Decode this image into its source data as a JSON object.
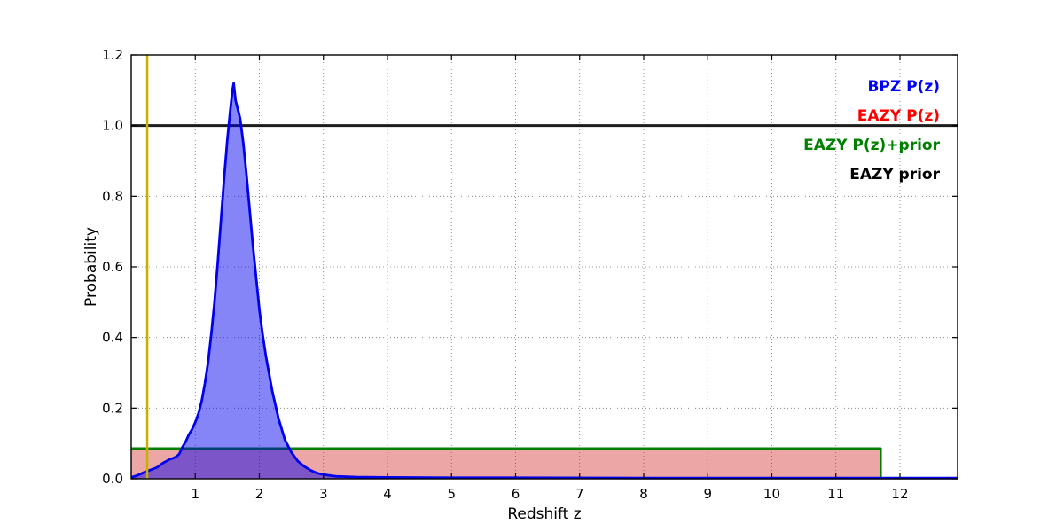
{
  "figure": {
    "background": "#ffffff"
  },
  "chart_data": {
    "type": "line",
    "title": "",
    "xlabel": "Redshift z",
    "ylabel": "Probability",
    "xlim": [
      0,
      12.9
    ],
    "ylim": [
      0,
      1.2
    ],
    "xticks": [
      1,
      2,
      3,
      4,
      5,
      6,
      7,
      8,
      9,
      10,
      11,
      12
    ],
    "xtick_labels": [
      "1",
      "2",
      "3",
      "4",
      "5",
      "6",
      "7",
      "8",
      "9",
      "10",
      "11",
      "12"
    ],
    "yticks": [
      0.0,
      0.2,
      0.4,
      0.6,
      0.8,
      1.0,
      1.2
    ],
    "ytick_labels": [
      "0.0",
      "0.2",
      "0.4",
      "0.6",
      "0.8",
      "1.0",
      "1.2"
    ],
    "grid": true,
    "grid_color": "#777777",
    "frame_color": "#000000",
    "legend_position": "upper right",
    "legend": [
      {
        "name": "legend-bpz-pz",
        "label": "BPZ P(z)",
        "color": "#0000ff"
      },
      {
        "name": "legend-eazy-pz",
        "label": "EAZY P(z)",
        "color": "#ff0000"
      },
      {
        "name": "legend-eazy-pz-prior",
        "label": "EAZY P(z)+prior",
        "color": "#008000"
      },
      {
        "name": "legend-eazy-prior",
        "label": "EAZY prior",
        "color": "#000000"
      }
    ],
    "series": [
      {
        "name": "EAZY P(z)",
        "color": "#cc0000",
        "fill": true,
        "fill_opacity": 0.35,
        "line_width": 0,
        "x": [
          0.0,
          11.7,
          11.7
        ],
        "y": [
          0.082,
          0.082,
          0.0
        ]
      },
      {
        "name": "EAZY P(z)+prior",
        "color": "#008000",
        "fill": false,
        "line_width": 2.5,
        "x": [
          0.0,
          11.7,
          11.7
        ],
        "y": [
          0.086,
          0.086,
          0.0
        ]
      },
      {
        "name": "EAZY prior",
        "color": "#1c1c1c",
        "fill": false,
        "line_width": 3,
        "x": [
          0.0,
          12.9
        ],
        "y": [
          1.0,
          1.0
        ]
      },
      {
        "name": "BPZ P(z)",
        "color": "#0000ee",
        "fill": true,
        "fill_opacity": 0.48,
        "line_width": 2.8,
        "x": [
          0.0,
          0.1,
          0.2,
          0.3,
          0.4,
          0.5,
          0.55,
          0.6,
          0.65,
          0.7,
          0.75,
          0.8,
          0.85,
          0.9,
          0.95,
          1.0,
          1.05,
          1.1,
          1.15,
          1.2,
          1.25,
          1.3,
          1.35,
          1.4,
          1.45,
          1.5,
          1.55,
          1.58,
          1.6,
          1.63,
          1.66,
          1.7,
          1.75,
          1.8,
          1.85,
          1.9,
          1.95,
          2.0,
          2.05,
          2.1,
          2.15,
          2.2,
          2.3,
          2.4,
          2.5,
          2.6,
          2.7,
          2.8,
          2.9,
          3.0,
          3.2,
          3.5,
          4.0,
          5.0,
          6.0,
          8.0,
          10.0,
          12.0,
          12.9
        ],
        "y": [
          0.004,
          0.01,
          0.018,
          0.025,
          0.032,
          0.045,
          0.05,
          0.055,
          0.058,
          0.062,
          0.07,
          0.09,
          0.105,
          0.125,
          0.14,
          0.16,
          0.185,
          0.22,
          0.27,
          0.33,
          0.41,
          0.5,
          0.61,
          0.73,
          0.85,
          0.96,
          1.05,
          1.1,
          1.12,
          1.07,
          1.05,
          1.02,
          0.95,
          0.86,
          0.76,
          0.66,
          0.57,
          0.48,
          0.41,
          0.35,
          0.3,
          0.25,
          0.17,
          0.11,
          0.075,
          0.05,
          0.035,
          0.024,
          0.016,
          0.012,
          0.007,
          0.005,
          0.004,
          0.003,
          0.003,
          0.002,
          0.002,
          0.002,
          0.002
        ]
      }
    ],
    "vline": {
      "x": 0.25,
      "color": "#c3b300",
      "width": 2.5
    }
  }
}
